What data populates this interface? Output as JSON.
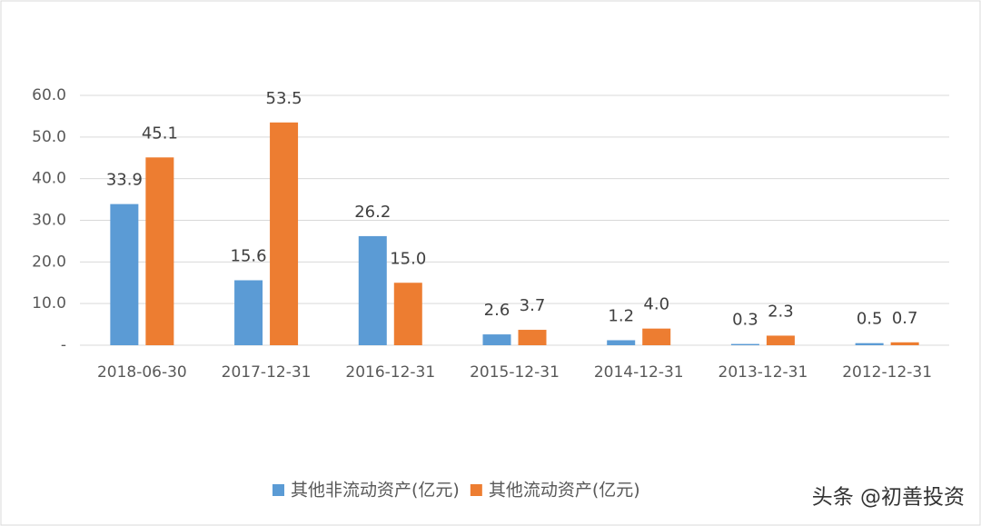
{
  "chart_data": {
    "type": "bar",
    "categories": [
      "2018-06-30",
      "2017-12-31",
      "2016-12-31",
      "2015-12-31",
      "2014-12-31",
      "2013-12-31",
      "2012-12-31"
    ],
    "series": [
      {
        "name": "其他非流动资产(亿元)",
        "color": "#5b9bd5",
        "values": [
          33.9,
          15.6,
          26.2,
          2.6,
          1.2,
          0.3,
          0.5
        ],
        "value_labels": [
          "33.9",
          "15.6",
          "26.2",
          "2.6",
          "1.2",
          "0.3",
          "0.5"
        ]
      },
      {
        "name": "其他流动资产(亿元)",
        "color": "#ed7d31",
        "values": [
          45.1,
          53.5,
          15.0,
          3.7,
          4.0,
          2.3,
          0.7
        ],
        "value_labels": [
          "45.1",
          "53.5",
          "15.0",
          "3.7",
          "4.0",
          "2.3",
          "0.7"
        ]
      }
    ],
    "ylim": [
      0,
      60
    ],
    "yticks": [
      {
        "value": 0,
        "label": "-"
      },
      {
        "value": 10,
        "label": "10.0"
      },
      {
        "value": 20,
        "label": "20.0"
      },
      {
        "value": 30,
        "label": "30.0"
      },
      {
        "value": 40,
        "label": "40.0"
      },
      {
        "value": 50,
        "label": "50.0"
      },
      {
        "value": 60,
        "label": "60.0"
      }
    ],
    "grid": true,
    "legend": "bottom"
  },
  "watermark": "头条 @初善投资"
}
